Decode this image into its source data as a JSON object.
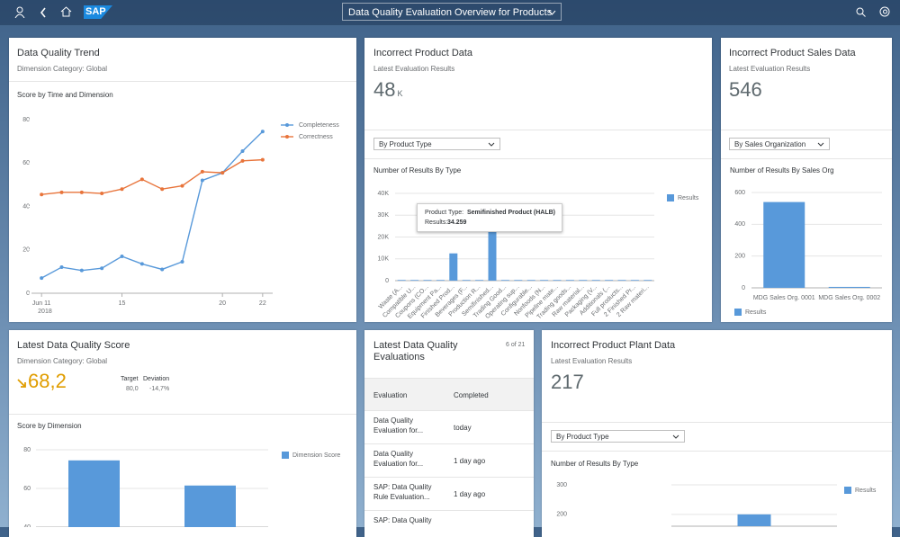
{
  "header": {
    "logo": "SAP",
    "title": "Data Quality Evaluation Overview for Products"
  },
  "cards": {
    "trend": {
      "title": "Data Quality Trend",
      "subtitle": "Dimension Category: Global"
    },
    "product": {
      "title": "Incorrect Product Data",
      "subtitle": "Latest Evaluation Results",
      "kpi": "48",
      "unit": "K",
      "dropdown": "By Product Type"
    },
    "sales": {
      "title": "Incorrect Product Sales Data",
      "subtitle": "Latest Evaluation Results",
      "kpi": "546",
      "dropdown": "By Sales Organization"
    },
    "score": {
      "title": "Latest Data Quality Score",
      "subtitle": "Dimension Category: Global",
      "kpi": "68,2",
      "target_label": "Target",
      "target": "80,0",
      "deviation_label": "Deviation",
      "deviation": "-14,7%"
    },
    "evaluations": {
      "title": "Latest Data Quality Evaluations",
      "count": "6 of 21",
      "columns": [
        "Evaluation",
        "Completed"
      ],
      "rows": [
        [
          "Data Quality Evaluation for...",
          "today"
        ],
        [
          "Data Quality Evaluation for...",
          "1 day ago"
        ],
        [
          "SAP: Data Quality Rule Evaluation...",
          "1 day ago"
        ],
        [
          "SAP: Data Quality",
          ""
        ]
      ]
    },
    "plant": {
      "title": "Incorrect Product Plant Data",
      "subtitle": "Latest Evaluation Results",
      "kpi": "217",
      "dropdown": "By Product Type"
    }
  },
  "chart_data": [
    {
      "type": "line",
      "title": "Score by Time and Dimension",
      "categories": [
        "Jun 11",
        null,
        null,
        null,
        "15",
        null,
        null,
        null,
        null,
        "20",
        null,
        "22"
      ],
      "x_sublabel": "2018",
      "series": [
        {
          "name": "Completeness",
          "color": "#5899da",
          "values": [
            7,
            12,
            10.5,
            11.5,
            17,
            13.5,
            11,
            14.5,
            52,
            55.5,
            65.5,
            74.5
          ]
        },
        {
          "name": "Correctness",
          "color": "#e8743b",
          "values": [
            45.5,
            46.5,
            46.5,
            46,
            48,
            52.5,
            48,
            49.5,
            56,
            55.5,
            61,
            61.5
          ]
        }
      ],
      "ylim": [
        0,
        80
      ],
      "yticks": [
        0,
        20,
        40,
        60,
        80
      ],
      "grid": false,
      "legend": "top-right"
    },
    {
      "type": "bar",
      "title": "Number of Results By Type",
      "categories": [
        "Waste (A...",
        "Compatible U...",
        "Coupons (CO...",
        "Equipment Pa...",
        "Finished Prod...",
        "Beverages (F...",
        "Production R...",
        "Semifinished...",
        "Trading Good...",
        "Operating sup...",
        "Configurable...",
        "Nonfoods (N...",
        "Pipeline mate...",
        "Trading goods...",
        "Raw material...",
        "Packaging (V...",
        "Additionals (...",
        "Full products...",
        "2 Finished Pr...",
        "2 Raw materi..."
      ],
      "series": [
        {
          "name": "Results",
          "color": "#5899da",
          "values": [
            300,
            300,
            300,
            300,
            12500,
            300,
            300,
            34259,
            300,
            300,
            300,
            300,
            300,
            300,
            300,
            300,
            300,
            300,
            300,
            300
          ]
        }
      ],
      "ylim": [
        0,
        40000
      ],
      "yticks": [
        0,
        {
          "value": 10000,
          "label": "10K"
        },
        {
          "value": 20000,
          "label": "20K"
        },
        {
          "value": 30000,
          "label": "30K"
        },
        {
          "value": 40000,
          "label": "40K"
        }
      ],
      "grid": true,
      "legend": "top-right",
      "tooltip": {
        "label": "Product Type:",
        "category": "Semifinished Product (HALB)",
        "value_label": "Results:",
        "value": "34.259"
      }
    },
    {
      "type": "bar",
      "title": "Number of Results By Sales Org",
      "categories": [
        "MDG Sales Org. 0001",
        "MDG Sales Org. 0002"
      ],
      "series": [
        {
          "name": "Results",
          "color": "#5899da",
          "values": [
            540,
            6
          ]
        }
      ],
      "ylim": [
        0,
        600
      ],
      "yticks": [
        0,
        200,
        400,
        600
      ],
      "grid": true,
      "legend": "bottom-left"
    },
    {
      "type": "bar",
      "title": "Score by Dimension",
      "categories": [
        null,
        null
      ],
      "series": [
        {
          "name": "Dimension Score",
          "color": "#5899da",
          "values": [
            74.5,
            61.5
          ]
        }
      ],
      "ylim": [
        40,
        80
      ],
      "yticks": [
        40,
        60,
        80
      ],
      "grid": true,
      "legend": "top-right"
    },
    {
      "type": "bar",
      "title": "Number of Results By Type",
      "categories": [
        null
      ],
      "series": [
        {
          "name": "Results",
          "color": "#5899da",
          "values": [
            200
          ]
        }
      ],
      "ylim": [
        160,
        300
      ],
      "yticks": [
        200,
        300
      ],
      "grid": true,
      "legend": "top-right"
    }
  ]
}
